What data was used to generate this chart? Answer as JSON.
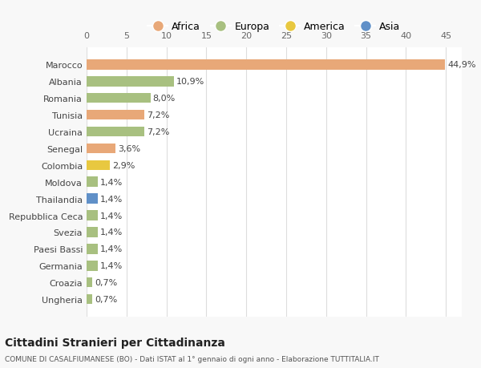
{
  "categories": [
    "Ungheria",
    "Croazia",
    "Germania",
    "Paesi Bassi",
    "Svezia",
    "Repubblica Ceca",
    "Thailandia",
    "Moldova",
    "Colombia",
    "Senegal",
    "Ucraina",
    "Tunisia",
    "Romania",
    "Albania",
    "Marocco"
  ],
  "values": [
    0.7,
    0.7,
    1.4,
    1.4,
    1.4,
    1.4,
    1.4,
    1.4,
    2.9,
    3.6,
    7.2,
    7.2,
    8.0,
    10.9,
    44.9
  ],
  "colors": [
    "#a8c080",
    "#a8c080",
    "#a8c080",
    "#a8c080",
    "#a8c080",
    "#a8c080",
    "#6090c8",
    "#a8c080",
    "#e8c840",
    "#e8a878",
    "#a8c080",
    "#e8a878",
    "#a8c080",
    "#a8c080",
    "#e8a878"
  ],
  "labels": [
    "0,7%",
    "0,7%",
    "1,4%",
    "1,4%",
    "1,4%",
    "1,4%",
    "1,4%",
    "1,4%",
    "2,9%",
    "3,6%",
    "7,2%",
    "7,2%",
    "8,0%",
    "10,9%",
    "44,9%"
  ],
  "legend": [
    {
      "label": "Africa",
      "color": "#e8a878"
    },
    {
      "label": "Europa",
      "color": "#a8c080"
    },
    {
      "label": "America",
      "color": "#e8c840"
    },
    {
      "label": "Asia",
      "color": "#6090c8"
    }
  ],
  "title": "Cittadini Stranieri per Cittadinanza",
  "subtitle": "COMUNE DI CASALFIUMANESE (BO) - Dati ISTAT al 1° gennaio di ogni anno - Elaborazione TUTTITALIA.IT",
  "xlim": [
    0,
    47
  ],
  "xticks": [
    0,
    5,
    10,
    15,
    20,
    25,
    30,
    35,
    40,
    45
  ],
  "background_color": "#f8f8f8",
  "plot_bg_color": "#ffffff",
  "grid_color": "#dddddd"
}
